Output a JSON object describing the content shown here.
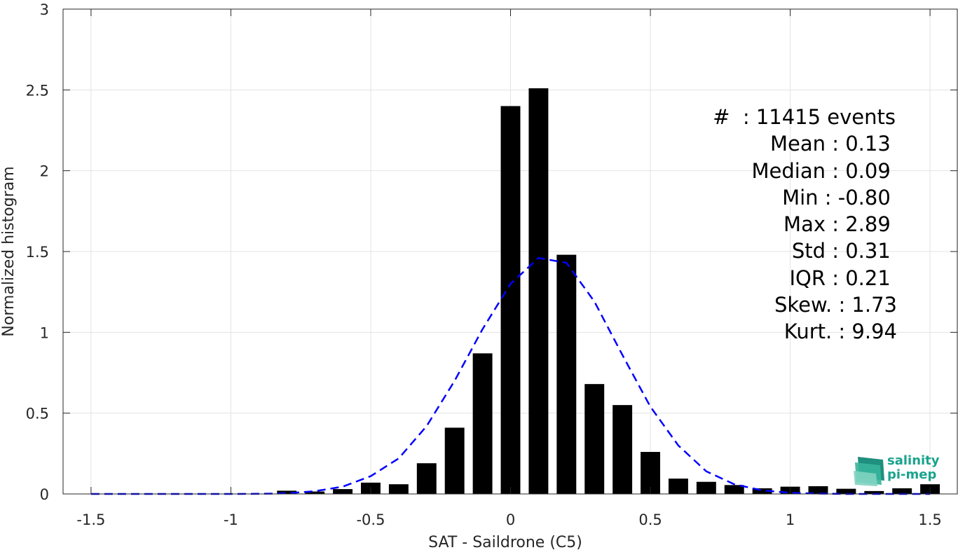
{
  "chart_data": {
    "type": "bar",
    "xlabel": "SAT - Saildrone (C5)",
    "ylabel": "Normalized histogram",
    "xlim": [
      -1.6,
      1.6
    ],
    "ylim": [
      0,
      3
    ],
    "xticks": [
      "-1.5",
      "-1",
      "-0.5",
      "0",
      "0.5",
      "1",
      "1.5"
    ],
    "xtick_values": [
      -1.5,
      -1,
      -0.5,
      0,
      0.5,
      1,
      1.5
    ],
    "yticks": [
      "0",
      "0.5",
      "1",
      "1.5",
      "2",
      "2.5",
      "3"
    ],
    "ytick_values": [
      0,
      0.5,
      1,
      1.5,
      2,
      2.5,
      3
    ],
    "grid": true,
    "bar_width": 0.07,
    "bar_color": "#000000",
    "bars": {
      "x": [
        -0.8,
        -0.7,
        -0.6,
        -0.5,
        -0.4,
        -0.3,
        -0.2,
        -0.1,
        0.0,
        0.1,
        0.2,
        0.3,
        0.4,
        0.5,
        0.6,
        0.7,
        0.8,
        0.9,
        1.0,
        1.1,
        1.2,
        1.3,
        1.4,
        1.5
      ],
      "values": [
        0.02,
        0.015,
        0.03,
        0.07,
        0.06,
        0.19,
        0.41,
        0.87,
        2.4,
        2.51,
        1.48,
        0.68,
        0.55,
        0.26,
        0.095,
        0.075,
        0.055,
        0.035,
        0.045,
        0.048,
        0.032,
        0.018,
        0.035,
        0.06
      ]
    },
    "fit_curve": {
      "style": "dashed",
      "color": "#0000ff",
      "x": [
        -1.5,
        -1.4,
        -1.3,
        -1.2,
        -1.1,
        -1.0,
        -0.9,
        -0.8,
        -0.7,
        -0.6,
        -0.5,
        -0.4,
        -0.3,
        -0.2,
        -0.1,
        0.0,
        0.1,
        0.2,
        0.3,
        0.4,
        0.5,
        0.6,
        0.7,
        0.8,
        0.9,
        1.0,
        1.1,
        1.2,
        1.3,
        1.4,
        1.5
      ],
      "y": [
        0.0,
        0.0,
        0.0,
        0.0,
        0.0,
        0.0,
        0.001,
        0.004,
        0.017,
        0.045,
        0.11,
        0.22,
        0.42,
        0.7,
        1.02,
        1.3,
        1.46,
        1.43,
        1.19,
        0.86,
        0.54,
        0.3,
        0.14,
        0.06,
        0.022,
        0.007,
        0.002,
        0.0,
        0.0,
        0.0,
        0.0
      ]
    }
  },
  "stats": [
    "#  : 11415 events",
    "Mean : 0.13 ",
    "Median : 0.09 ",
    "Min : -0.80 ",
    "Max : 2.89 ",
    "Std : 0.31 ",
    "IQR : 0.21 ",
    "Skew. : 1.73",
    "Kurt. : 9.94"
  ],
  "logo": {
    "line1": "salinity",
    "line2": "pi-mep"
  }
}
